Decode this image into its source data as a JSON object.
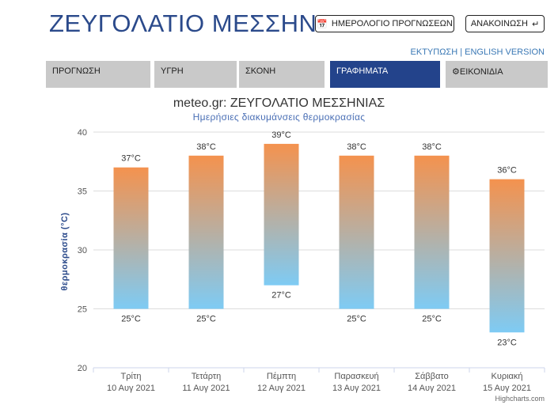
{
  "header": {
    "title": "ΖΕΥΓΟΛΑΤΙΟ ΜΕΣΣΗΝΙΑΣ",
    "calendar_button": "ΗΜΕΡΟΛΟΓΙΟ ΠΡΟΓΝΩΣΕΩΝ",
    "announcement_button": "ΑΝΑΚΟΙΝΩΣΗ",
    "print_link": "ΕΚΤΥΠΩΣΗ",
    "separator": "|",
    "english_link": "ENGLISH VERSION"
  },
  "tabs": [
    {
      "label": "ΠΡΟΓΝΩΣΗ",
      "active": false
    },
    {
      "label": "ΥΓΡΗ",
      "active": false
    },
    {
      "label": "ΣΚΟΝΗ",
      "active": false
    },
    {
      "label": "ΓΡΑΦΗΜΑΤΑ",
      "active": true
    },
    {
      "label": "ΕΙΚΟΝΙΔΙΑ",
      "active": false,
      "icon": "gear-icon"
    }
  ],
  "credit": "Highcharts.com",
  "colors": {
    "title": "#2b4a8b",
    "active_tab": "#23438b",
    "inactive_tab": "#c9c9c9",
    "bar_top": "#f4924e",
    "bar_bottom": "#7ecbf4",
    "link": "#3a78b5"
  },
  "chart_data": {
    "type": "columnrange",
    "title": "meteo.gr: ΖΕΥΓΟΛΑΤΙΟ ΜΕΣΣΗΝΙΑΣ",
    "subtitle": "Ημερήσιες διακυμάνσεις θερμοκρασίας",
    "ylabel": "θερμοκρασία (°C)",
    "ylim": [
      20,
      40
    ],
    "yticks": [
      20,
      25,
      30,
      35,
      40
    ],
    "unit": "°C",
    "grid": true,
    "categories": [
      {
        "day": "Τρίτη",
        "date": "10 Αυγ 2021"
      },
      {
        "day": "Τετάρτη",
        "date": "11 Αυγ 2021"
      },
      {
        "day": "Πέμπτη",
        "date": "12 Αυγ 2021"
      },
      {
        "day": "Παρασκευή",
        "date": "13 Αυγ 2021"
      },
      {
        "day": "Σάββατο",
        "date": "14 Αυγ 2021"
      },
      {
        "day": "Κυριακή",
        "date": "15 Αυγ 2021"
      }
    ],
    "low": [
      25,
      25,
      27,
      25,
      25,
      23
    ],
    "high": [
      37,
      38,
      39,
      38,
      38,
      36
    ]
  }
}
